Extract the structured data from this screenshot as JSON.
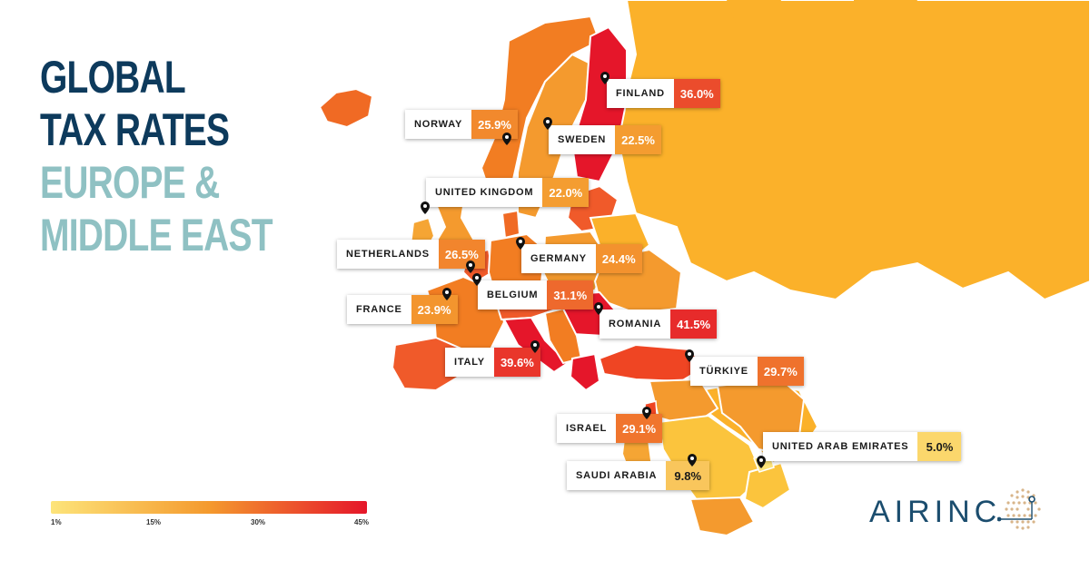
{
  "title": {
    "line1": "GLOBAL",
    "line2": "TAX RATES",
    "line3": "EUROPE &",
    "line4": "MIDDLE EAST"
  },
  "colors": {
    "title_dark": "#0d3a5c",
    "title_light": "#8fc1c3",
    "land_other": "#fbb12a",
    "scale_low": "#fde47a",
    "scale_mid": "#f49a2e",
    "scale_high": "#e5162a"
  },
  "legend": {
    "min_label": "1%",
    "tick_15": "15%",
    "tick_30": "30%",
    "max_label": "45%"
  },
  "countries": [
    {
      "id": "finland",
      "name": "FINLAND",
      "rate": "36.0%",
      "value": 36.0
    },
    {
      "id": "norway",
      "name": "NORWAY",
      "rate": "25.9%",
      "value": 25.9
    },
    {
      "id": "sweden",
      "name": "SWEDEN",
      "rate": "22.5%",
      "value": 22.5
    },
    {
      "id": "uk",
      "name": "UNITED KINGDOM",
      "rate": "22.0%",
      "value": 22.0
    },
    {
      "id": "netherlands",
      "name": "NETHERLANDS",
      "rate": "26.5%",
      "value": 26.5
    },
    {
      "id": "germany",
      "name": "GERMANY",
      "rate": "24.4%",
      "value": 24.4
    },
    {
      "id": "belgium",
      "name": "BELGIUM",
      "rate": "31.1%",
      "value": 31.1
    },
    {
      "id": "france",
      "name": "FRANCE",
      "rate": "23.9%",
      "value": 23.9
    },
    {
      "id": "romania",
      "name": "ROMANIA",
      "rate": "41.5%",
      "value": 41.5
    },
    {
      "id": "italy",
      "name": "ITALY",
      "rate": "39.6%",
      "value": 39.6
    },
    {
      "id": "turkiye",
      "name": "TÜRKIYE",
      "rate": "29.7%",
      "value": 29.7
    },
    {
      "id": "israel",
      "name": "ISRAEL",
      "rate": "29.1%",
      "value": 29.1
    },
    {
      "id": "uae",
      "name": "UNITED ARAB EMIRATES",
      "rate": "5.0%",
      "value": 5.0
    },
    {
      "id": "saudi",
      "name": "SAUDI ARABIA",
      "rate": "9.8%",
      "value": 9.8
    }
  ],
  "logo": {
    "text": "AIRINC"
  }
}
